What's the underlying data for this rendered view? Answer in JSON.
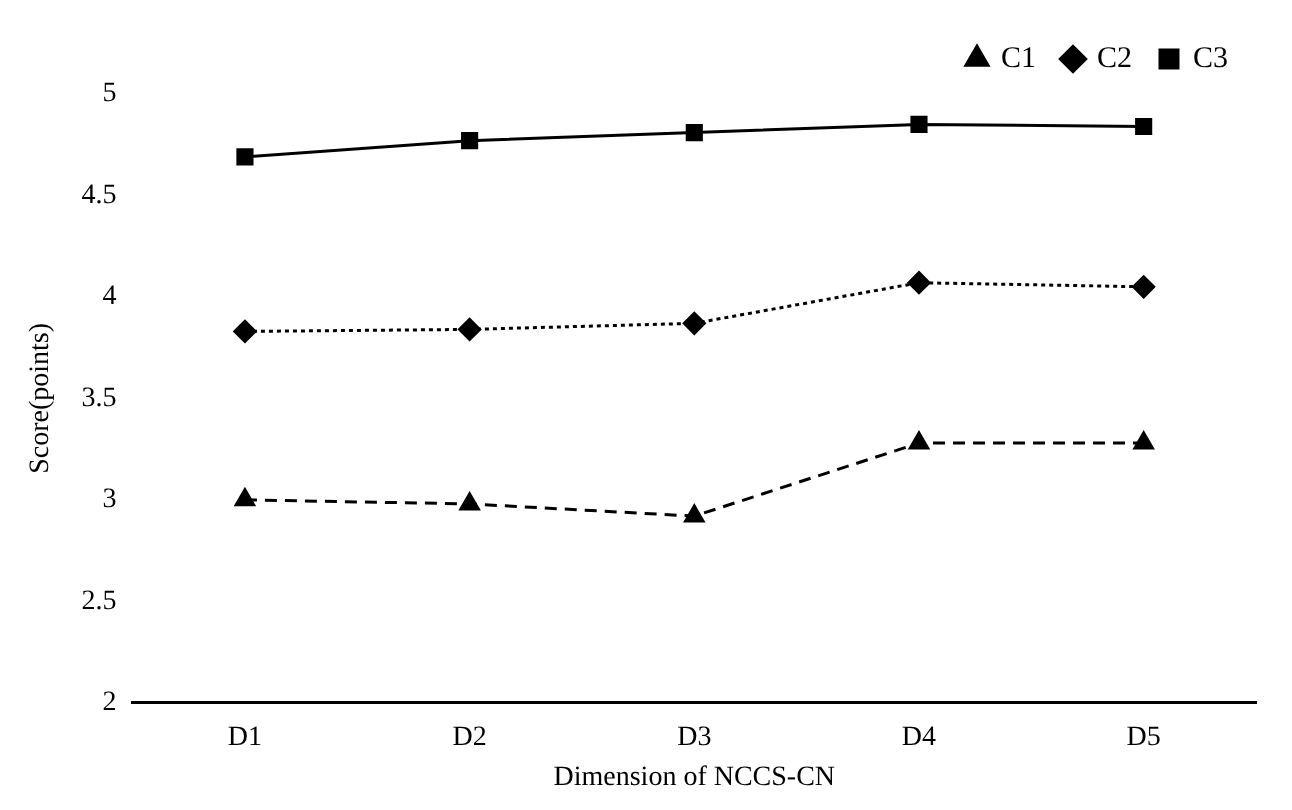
{
  "chart_data": {
    "type": "line",
    "xlabel": "Dimension of NCCS-CN",
    "ylabel": "Score(points)",
    "categories": [
      "D1",
      "D2",
      "D3",
      "D4",
      "D5"
    ],
    "series": [
      {
        "name": "C1",
        "color": "#000000",
        "marker": "triangle",
        "line_style": "dashed",
        "values": [
          3.0,
          2.98,
          2.92,
          3.28,
          3.28
        ]
      },
      {
        "name": "C2",
        "color": "#000000",
        "marker": "diamond",
        "line_style": "dotted",
        "values": [
          3.83,
          3.84,
          3.87,
          4.07,
          4.05
        ]
      },
      {
        "name": "C3",
        "color": "#000000",
        "marker": "square",
        "line_style": "solid",
        "values": [
          4.69,
          4.77,
          4.81,
          4.85,
          4.84
        ]
      }
    ],
    "ylim": [
      2,
      5
    ],
    "yticks": [
      2,
      2.5,
      3,
      3.5,
      4,
      4.5,
      5
    ],
    "grid": false,
    "legend": "top right"
  }
}
